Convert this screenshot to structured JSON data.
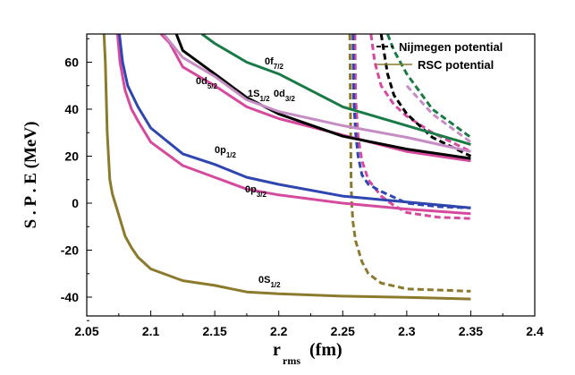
{
  "chart_data": {
    "type": "line",
    "title": "",
    "xlabel": "r",
    "xlabel_sub": "rms",
    "xlabel_unit": "(fm)",
    "ylabel": "S . P . E (MeV)",
    "xlim": [
      2.05,
      2.4
    ],
    "ylim": [
      -48,
      72
    ],
    "xticks": [
      2.05,
      2.1,
      2.15,
      2.2,
      2.25,
      2.3,
      2.35,
      2.4
    ],
    "xtick_labels": [
      "2.05",
      "2.1",
      "2.15",
      "2.2",
      "2.25",
      "2.3",
      "2.35",
      "2.4"
    ],
    "yticks": [
      -40,
      -20,
      0,
      20,
      40,
      60
    ],
    "ytick_labels": [
      "-40",
      "-20",
      "0",
      "20",
      "40",
      "60"
    ],
    "legend": [
      {
        "label": "Nijmegen potential",
        "style": "dashed",
        "color": "#000000"
      },
      {
        "label": "RSC potential",
        "style": "solid",
        "color": "#8b7a2e"
      }
    ],
    "series": [
      {
        "name": "0S1/2",
        "label_main": "0S",
        "label_sub": "1/2",
        "color": "#8b7a2e",
        "solid": [
          [
            2.0635,
            72
          ],
          [
            2.0645,
            60
          ],
          [
            2.066,
            30
          ],
          [
            2.068,
            10
          ],
          [
            2.07,
            4
          ],
          [
            2.075,
            -5
          ],
          [
            2.08,
            -14
          ],
          [
            2.085,
            -19
          ],
          [
            2.09,
            -23
          ],
          [
            2.1,
            -28
          ],
          [
            2.125,
            -33
          ],
          [
            2.15,
            -35
          ],
          [
            2.175,
            -37.8
          ],
          [
            2.2,
            -38.6
          ],
          [
            2.25,
            -39.6
          ],
          [
            2.3,
            -40.1
          ],
          [
            2.35,
            -40.8
          ]
        ],
        "dashed": [
          [
            2.2555,
            72
          ],
          [
            2.256,
            40
          ],
          [
            2.2565,
            10
          ],
          [
            2.257,
            0
          ],
          [
            2.258,
            -8
          ],
          [
            2.26,
            -16
          ],
          [
            2.265,
            -25
          ],
          [
            2.27,
            -30
          ],
          [
            2.28,
            -34
          ],
          [
            2.3,
            -36.5
          ],
          [
            2.35,
            -37.5
          ]
        ]
      },
      {
        "name": "0p3/2",
        "label_main": "0p",
        "label_sub": "3/2",
        "color": "#d64a9e",
        "solid": [
          [
            2.074,
            72
          ],
          [
            2.076,
            60
          ],
          [
            2.08,
            48
          ],
          [
            2.085,
            40
          ],
          [
            2.09,
            35
          ],
          [
            2.1,
            26
          ],
          [
            2.125,
            16
          ],
          [
            2.15,
            11
          ],
          [
            2.175,
            6
          ],
          [
            2.2,
            3.5
          ],
          [
            2.25,
            0
          ],
          [
            2.3,
            -2.5
          ],
          [
            2.35,
            -4.5
          ]
        ],
        "dashed": [
          [
            2.2595,
            72
          ],
          [
            2.26,
            45
          ],
          [
            2.262,
            28
          ],
          [
            2.265,
            18
          ],
          [
            2.27,
            10
          ],
          [
            2.28,
            3
          ],
          [
            2.29,
            -1
          ],
          [
            2.3,
            -4
          ],
          [
            2.325,
            -6
          ],
          [
            2.35,
            -6.5
          ]
        ]
      },
      {
        "name": "0p1/2",
        "label_main": "0p",
        "label_sub": "1/2",
        "color": "#2f45b0",
        "solid": [
          [
            2.0755,
            72
          ],
          [
            2.078,
            60
          ],
          [
            2.082,
            50
          ],
          [
            2.09,
            41
          ],
          [
            2.1,
            32
          ],
          [
            2.125,
            21
          ],
          [
            2.15,
            16.5
          ],
          [
            2.175,
            11
          ],
          [
            2.2,
            8
          ],
          [
            2.25,
            3
          ],
          [
            2.3,
            0.5
          ],
          [
            2.35,
            -2
          ]
        ],
        "dashed": [
          [
            2.258,
            72
          ],
          [
            2.2585,
            45
          ],
          [
            2.26,
            30
          ],
          [
            2.262,
            20
          ],
          [
            2.265,
            12
          ],
          [
            2.27,
            8
          ],
          [
            2.28,
            5
          ],
          [
            2.3,
            0
          ],
          [
            2.325,
            -1.5
          ],
          [
            2.35,
            -2
          ]
        ]
      },
      {
        "name": "0d5/2",
        "label_main": "0d",
        "label_sub": "5/2",
        "color": "#d64a9e",
        "solid": [
          [
            2.108,
            72
          ],
          [
            2.115,
            68
          ],
          [
            2.125,
            58
          ],
          [
            2.15,
            50
          ],
          [
            2.175,
            41
          ],
          [
            2.2,
            36
          ],
          [
            2.25,
            29
          ],
          [
            2.3,
            22
          ],
          [
            2.35,
            18
          ]
        ],
        "dashed": [
          [
            2.272,
            72
          ],
          [
            2.275,
            60
          ],
          [
            2.28,
            50
          ],
          [
            2.29,
            42
          ],
          [
            2.3,
            37
          ],
          [
            2.32,
            30
          ],
          [
            2.35,
            22
          ]
        ]
      },
      {
        "name": "1S1/2",
        "label_main": "1S",
        "label_sub": "1/2",
        "color": "#000000",
        "solid": [
          [
            2.12,
            72
          ],
          [
            2.125,
            65
          ],
          [
            2.15,
            55
          ],
          [
            2.175,
            45
          ],
          [
            2.2,
            38
          ],
          [
            2.25,
            28.5
          ],
          [
            2.3,
            23
          ],
          [
            2.35,
            19
          ]
        ],
        "dashed": [
          [
            2.28,
            72
          ],
          [
            2.285,
            55
          ],
          [
            2.29,
            46
          ],
          [
            2.3,
            38
          ],
          [
            2.32,
            28
          ],
          [
            2.35,
            20
          ]
        ]
      },
      {
        "name": "0d3/2",
        "label_main": "0d",
        "label_sub": "3/2",
        "color": "#c58dc3",
        "solid": [
          [
            2.11,
            72
          ],
          [
            2.125,
            62
          ],
          [
            2.15,
            54
          ],
          [
            2.175,
            44
          ],
          [
            2.2,
            39
          ],
          [
            2.25,
            33
          ],
          [
            2.3,
            28
          ],
          [
            2.35,
            22
          ]
        ],
        "dashed": [
          [
            2.3,
            50
          ],
          [
            2.32,
            38
          ],
          [
            2.35,
            26
          ]
        ]
      },
      {
        "name": "0f7/2",
        "label_main": "0f",
        "label_sub": "7/2",
        "color": "#1a7a45",
        "solid": [
          [
            2.14,
            72
          ],
          [
            2.15,
            68
          ],
          [
            2.175,
            60
          ],
          [
            2.2,
            55
          ],
          [
            2.25,
            41
          ],
          [
            2.3,
            33
          ],
          [
            2.35,
            25
          ]
        ],
        "dashed": [
          [
            2.285,
            72
          ],
          [
            2.29,
            65
          ],
          [
            2.3,
            55
          ],
          [
            2.32,
            40
          ],
          [
            2.35,
            28
          ]
        ]
      }
    ]
  }
}
